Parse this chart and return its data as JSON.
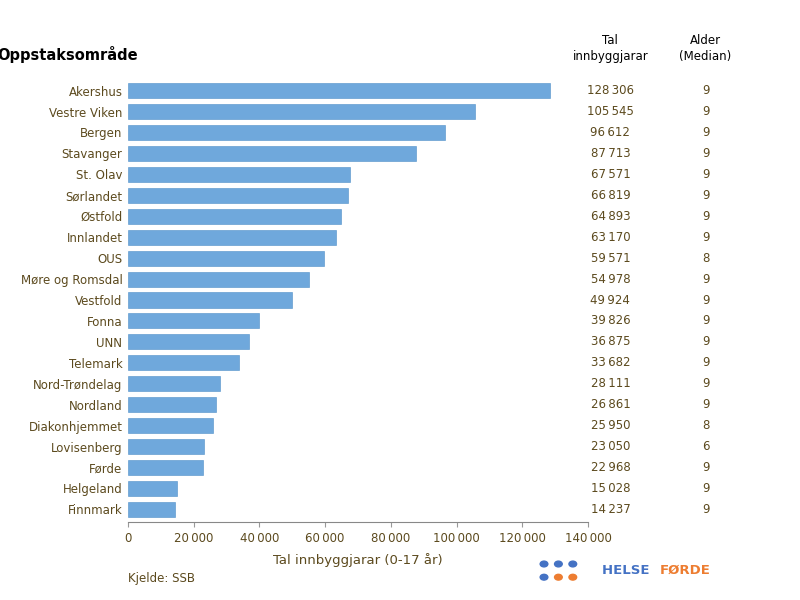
{
  "col_header_area": "Oppstaksområde",
  "col_header_val": "Tal\ninnbyggjarar",
  "col_header_age": "Alder\n(Median)",
  "xlabel": "Tal innbyggjarar (0-17 år)",
  "source": "Kjelde: SSB",
  "categories": [
    "Akershus",
    "Vestre Viken",
    "Bergen",
    "Stavanger",
    "St. Olav",
    "Sørlandet",
    "Østfold",
    "Innlandet",
    "OUS",
    "Møre og Romsdal",
    "Vestfold",
    "Fonna",
    "UNN",
    "Telemark",
    "Nord-Trøndelag",
    "Nordland",
    "Diakonhjemmet",
    "Lovisenberg",
    "Førde",
    "Helgeland",
    "Finnmark"
  ],
  "values": [
    128306,
    105545,
    96612,
    87713,
    67571,
    66819,
    64893,
    63170,
    59571,
    54978,
    49924,
    39826,
    36875,
    33682,
    28111,
    26861,
    25950,
    23050,
    22968,
    15028,
    14237
  ],
  "age_medians": [
    9,
    9,
    9,
    9,
    9,
    9,
    9,
    9,
    8,
    9,
    9,
    9,
    9,
    9,
    9,
    9,
    8,
    6,
    9,
    9,
    9
  ],
  "bar_color": "#6fa8dc",
  "bar_edge_color": "#5090c8",
  "text_color": "#5c4a1e",
  "header_color": "#000000",
  "xlim": [
    0,
    140000
  ],
  "xticks": [
    0,
    20000,
    40000,
    60000,
    80000,
    100000,
    120000,
    140000
  ],
  "background_color": "#ffffff",
  "logo_blue": "#4472c4",
  "logo_orange": "#ed7d31"
}
